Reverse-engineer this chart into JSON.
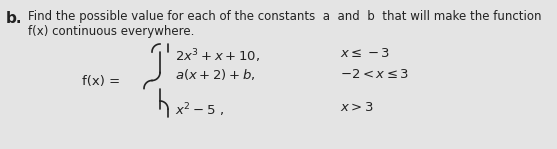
{
  "background_color": "#e4e4e4",
  "label_b": "b.",
  "title_line1": "Find the possible value for each of the constants  a  and  b  that will make the function",
  "title_line2": "f(x) continuous everywhere.",
  "fx_label": "f(x) =",
  "piece1_expr": "$2x^3 + x + 10,$",
  "piece1_cond": "$x \\leq -3$",
  "piece2_expr": "$a(x + 2) + b,$",
  "piece2_cond": "$-2 < x \\leq 3$",
  "piece3_expr": "$x^2 - 5\\ ,$",
  "piece3_cond": "$x > 3$",
  "text_color": "#222222",
  "title_fontsize": 8.5,
  "expr_fontsize": 9.5,
  "label_fontsize": 11
}
